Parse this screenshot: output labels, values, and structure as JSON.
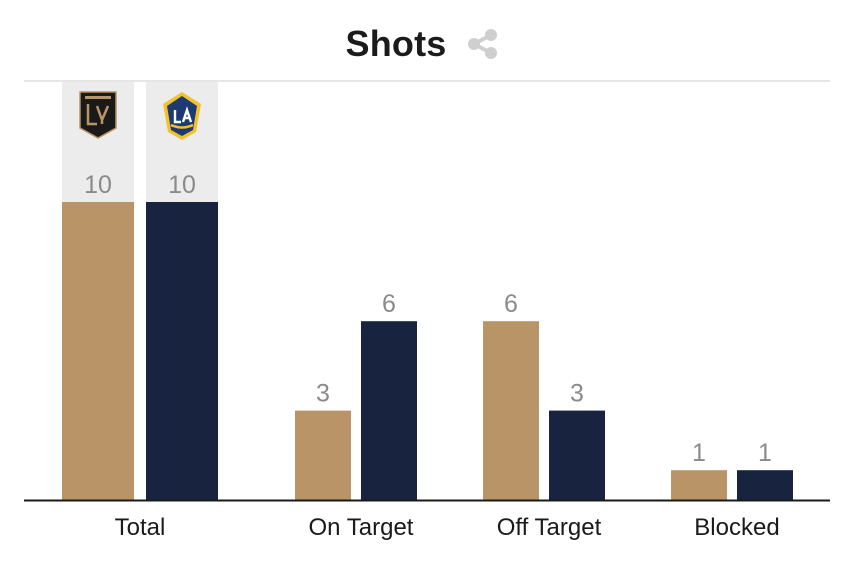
{
  "header": {
    "title": "Shots"
  },
  "icons": {
    "share": "share-icon",
    "team_a_logo": "lafc-crest-icon",
    "team_b_logo": "la-galaxy-crest-icon"
  },
  "colors": {
    "team_a": "#b99467",
    "team_b": "#17233f",
    "highlight": "#ececec",
    "value_text": "#8a8a8a"
  },
  "chart_data": {
    "type": "bar",
    "title": "Shots",
    "categories": [
      "Total",
      "On Target",
      "Off Target",
      "Blocked"
    ],
    "series": [
      {
        "values": [
          10,
          3,
          6,
          1
        ]
      },
      {
        "values": [
          10,
          6,
          3,
          1
        ]
      }
    ],
    "ylim": [
      0,
      10
    ],
    "grid": false,
    "legend": "logos"
  }
}
